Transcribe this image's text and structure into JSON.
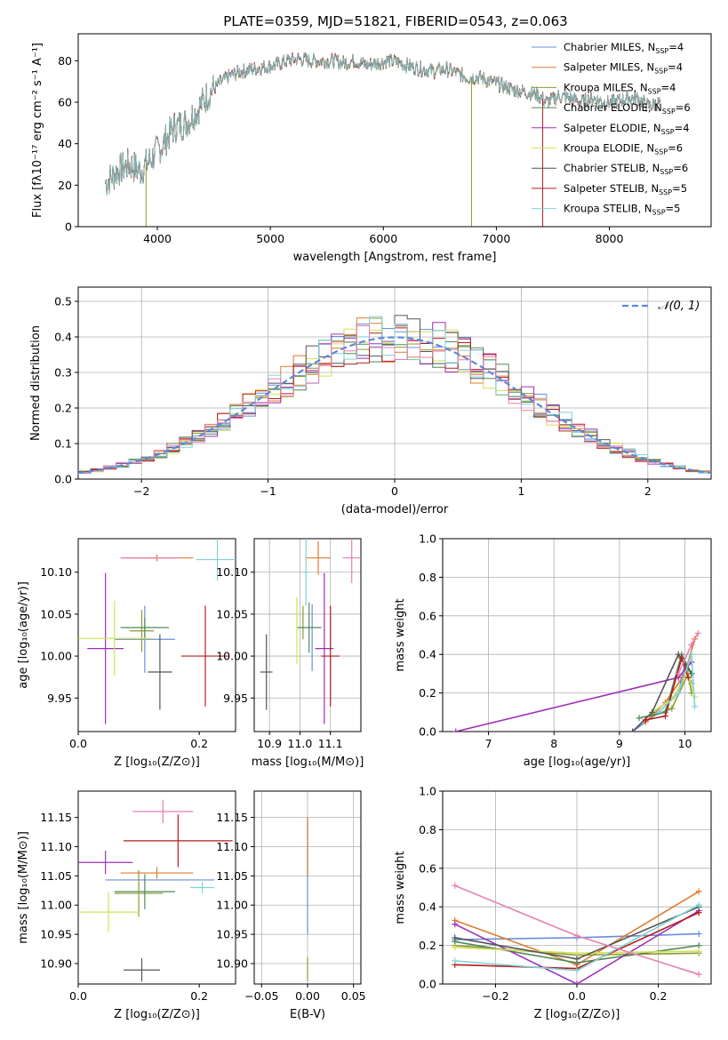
{
  "title": "PLATE=0359, MJD=51821, FIBERID=0543, z=0.063",
  "colors": [
    "#6a8fd8",
    "#e07b2c",
    "#8e9a2f",
    "#4f8a5a",
    "#9b30b8",
    "#d4e05a",
    "#555555",
    "#b51c1c",
    "#7fd3d6",
    "#e87fb3"
  ],
  "chart_data": [
    {
      "id": "spectrum",
      "type": "line",
      "xlabel": "wavelength [Angstrom, rest frame]",
      "ylabel": "Flux [fλ10⁻¹⁷ erg cm⁻² s⁻¹ A⁻¹]",
      "xlim": [
        3300,
        8900
      ],
      "ylim": [
        0,
        93
      ],
      "xticks": [
        4000,
        5000,
        6000,
        7000,
        8000
      ],
      "yticks": [
        0,
        20,
        40,
        60,
        80
      ],
      "grid": false,
      "legend_position": "top-right",
      "continuum": {
        "x": [
          3540,
          3650,
          3750,
          3850,
          3950,
          4050,
          4150,
          4250,
          4350,
          4450,
          4550,
          4650,
          4750,
          4850,
          4950,
          5050,
          5150,
          5250,
          5350,
          5450,
          5550,
          5650,
          5750,
          5850,
          5950,
          6050,
          6150,
          6250,
          6350,
          6450,
          6550,
          6650,
          6750,
          6850,
          6950,
          7050,
          7150,
          7250,
          7350,
          7450,
          7550,
          7650,
          7750,
          7850,
          7950,
          8050,
          8150,
          8250,
          8350,
          8450
        ],
        "y": [
          21,
          27,
          30,
          27,
          33,
          40,
          48,
          50,
          56,
          64,
          69,
          73,
          75,
          76,
          77,
          78,
          80,
          81,
          80,
          80,
          80,
          79,
          80,
          78,
          79,
          80,
          79,
          77,
          76,
          75,
          76,
          74,
          72,
          72,
          70,
          68,
          66,
          65,
          64,
          60,
          63,
          62,
          60,
          62,
          60,
          60,
          62,
          62,
          58,
          60
        ]
      },
      "dips": [
        {
          "x": 3900,
          "y": 0
        },
        {
          "x": 6780,
          "y": 0
        },
        {
          "x": 7410,
          "y": 0
        }
      ],
      "series": [
        {
          "name": "Chabrier MILES, N",
          "sub": "SSP",
          "suffix": "=4"
        },
        {
          "name": "Salpeter MILES, N",
          "sub": "SSP",
          "suffix": "=4"
        },
        {
          "name": "Kroupa MILES, N",
          "sub": "SSP",
          "suffix": "=4"
        },
        {
          "name": "Chabrier ELODIE, N",
          "sub": "SSP",
          "suffix": "=6"
        },
        {
          "name": "Salpeter ELODIE, N",
          "sub": "SSP",
          "suffix": "=4"
        },
        {
          "name": "Kroupa ELODIE, N",
          "sub": "SSP",
          "suffix": "=6"
        },
        {
          "name": "Chabrier STELIB, N",
          "sub": "SSP",
          "suffix": "=6"
        },
        {
          "name": "Salpeter STELIB, N",
          "sub": "SSP",
          "suffix": "=5"
        },
        {
          "name": "Kroupa STELIB, N",
          "sub": "SSP",
          "suffix": "=5"
        }
      ]
    },
    {
      "id": "residuals",
      "type": "line",
      "xlabel": "(data-model)/error",
      "ylabel": "Normed distribution",
      "xlim": [
        -2.5,
        2.5
      ],
      "ylim": [
        0,
        0.54
      ],
      "xticks": [
        -2,
        -1,
        0,
        1,
        2
      ],
      "yticks": [
        0.0,
        0.1,
        0.2,
        0.3,
        0.4,
        0.5
      ],
      "grid": true,
      "legend_position": "top-right",
      "legend_label": "𝒩(0, 1)",
      "gaussian": {
        "mu": 0,
        "sigma": 1
      }
    },
    {
      "id": "age-vs-Z",
      "type": "scatter",
      "xlabel": "Z [log₁₀(Z/Z⊙)]",
      "ylabel": "age  [log₁₀(age/yr)]",
      "xlim": [
        0,
        0.26
      ],
      "ylim": [
        9.91,
        10.14
      ],
      "xticks": [
        0.0,
        0.2
      ],
      "yticks": [
        9.95,
        10.0,
        10.05,
        10.1
      ],
      "grid": false,
      "points": [
        {
          "x": 0.11,
          "y": 10.02,
          "xerr": 0.05,
          "yerr": 0.04
        },
        {
          "x": 0.13,
          "y": 10.117,
          "xerr": 0.06,
          "yerr": 0.004
        },
        {
          "x": 0.105,
          "y": 10.03,
          "xerr": 0.02,
          "yerr": 0.025
        },
        {
          "x": 0.11,
          "y": 10.034,
          "xerr": 0.04,
          "yerr": 0.012
        },
        {
          "x": 0.045,
          "y": 10.009,
          "xerr": 0.03,
          "yerr": 0.09
        },
        {
          "x": 0.06,
          "y": 10.021,
          "xerr": 0.06,
          "yerr": 0.045
        },
        {
          "x": 0.135,
          "y": 9.981,
          "xerr": 0.02,
          "yerr": 0.045
        },
        {
          "x": 0.21,
          "y": 10.0,
          "xerr": 0.04,
          "yerr": 0.06
        },
        {
          "x": 0.23,
          "y": 10.115,
          "xerr": 0.035,
          "yerr": 0.025
        },
        {
          "x": 0.12,
          "y": 10.117,
          "xerr": 0.05,
          "yerr": 0.0
        }
      ]
    },
    {
      "id": "age-vs-mass",
      "type": "scatter",
      "xlabel": "mass [log₁₀(M/M⊙)]",
      "ylabel": "",
      "xlim": [
        10.85,
        11.2
      ],
      "ylim": [
        9.91,
        10.14
      ],
      "xticks": [
        10.9,
        11.0,
        11.1
      ],
      "yticks": [
        9.95,
        10.0,
        10.05,
        10.1
      ],
      "grid": true,
      "points": [
        {
          "x": 11.04,
          "y": 10.022,
          "xerr": 0.0,
          "yerr": 0.04
        },
        {
          "x": 11.06,
          "y": 10.117,
          "xerr": 0.04,
          "yerr": 0.02
        },
        {
          "x": 11.01,
          "y": 10.04,
          "xerr": 0.0,
          "yerr": 0.02
        },
        {
          "x": 11.03,
          "y": 10.034,
          "xerr": 0.04,
          "yerr": 0.03
        },
        {
          "x": 11.08,
          "y": 10.009,
          "xerr": 0.03,
          "yerr": 0.09
        },
        {
          "x": 10.99,
          "y": 10.03,
          "xerr": 0.0,
          "yerr": 0.04
        },
        {
          "x": 10.89,
          "y": 9.981,
          "xerr": 0.02,
          "yerr": 0.045
        },
        {
          "x": 11.1,
          "y": 10.0,
          "xerr": 0.03,
          "yerr": 0.06
        },
        {
          "x": 11.02,
          "y": 10.1,
          "xerr": 0.01,
          "yerr": 0.04
        },
        {
          "x": 11.17,
          "y": 10.117,
          "xerr": 0.03,
          "yerr": 0.03
        }
      ]
    },
    {
      "id": "weight-vs-age",
      "type": "line",
      "xlabel": "age  [log₁₀(age/yr)]",
      "ylabel": "mass weight",
      "xlim": [
        6.3,
        10.4
      ],
      "ylim": [
        0,
        1.0
      ],
      "xticks": [
        7,
        8,
        9,
        10
      ],
      "yticks": [
        0.0,
        0.2,
        0.4,
        0.6,
        0.8,
        1.0
      ],
      "grid": true,
      "series": [
        {
          "x": [
            9.2,
            9.6,
            9.9,
            10.0,
            10.1
          ],
          "y": [
            0.0,
            0.1,
            0.2,
            0.35,
            0.25
          ]
        },
        {
          "x": [
            9.4,
            9.7,
            10.0,
            10.15
          ],
          "y": [
            0.05,
            0.15,
            0.3,
            0.48
          ]
        },
        {
          "x": [
            9.5,
            9.8,
            10.05,
            10.1
          ],
          "y": [
            0.08,
            0.12,
            0.3,
            0.2
          ]
        },
        {
          "x": [
            9.3,
            9.7,
            9.95,
            10.1
          ],
          "y": [
            0.07,
            0.1,
            0.4,
            0.3
          ]
        },
        {
          "x": [
            6.5,
            9.9,
            10.1
          ],
          "y": [
            0.0,
            0.28,
            0.36
          ]
        },
        {
          "x": [
            9.5,
            9.8,
            10.05,
            10.15
          ],
          "y": [
            0.1,
            0.17,
            0.3,
            0.18
          ]
        },
        {
          "x": [
            9.2,
            9.5,
            9.9,
            10.1
          ],
          "y": [
            0.0,
            0.1,
            0.4,
            0.3
          ]
        },
        {
          "x": [
            9.4,
            9.7,
            9.95,
            10.05
          ],
          "y": [
            0.06,
            0.08,
            0.38,
            0.28
          ]
        },
        {
          "x": [
            9.6,
            9.9,
            10.1,
            10.15
          ],
          "y": [
            0.1,
            0.2,
            0.4,
            0.13
          ]
        },
        {
          "x": [
            9.9,
            10.1,
            10.2
          ],
          "y": [
            0.3,
            0.45,
            0.51
          ]
        }
      ]
    },
    {
      "id": "mass-vs-Z",
      "type": "scatter",
      "xlabel": "Z [log₁₀(Z/Z⊙)]",
      "ylabel": "mass [log₁₀(M/M⊙)]",
      "xlim": [
        0,
        0.26
      ],
      "ylim": [
        10.865,
        11.195
      ],
      "xticks": [
        0.0,
        0.2
      ],
      "yticks": [
        10.9,
        10.95,
        11.0,
        11.05,
        11.1,
        11.15
      ],
      "grid": false,
      "points": [
        {
          "x": 0.135,
          "y": 11.043,
          "xerr": 0.09,
          "yerr": 0.0
        },
        {
          "x": 0.13,
          "y": 11.055,
          "xerr": 0.06,
          "yerr": 0.01
        },
        {
          "x": 0.1,
          "y": 11.02,
          "xerr": 0.04,
          "yerr": 0.04
        },
        {
          "x": 0.11,
          "y": 11.023,
          "xerr": 0.05,
          "yerr": 0.03
        },
        {
          "x": 0.045,
          "y": 11.073,
          "xerr": 0.045,
          "yerr": 0.02
        },
        {
          "x": 0.05,
          "y": 10.988,
          "xerr": 0.05,
          "yerr": 0.035
        },
        {
          "x": 0.105,
          "y": 10.889,
          "xerr": 0.03,
          "yerr": 0.02
        },
        {
          "x": 0.165,
          "y": 11.11,
          "xerr": 0.09,
          "yerr": 0.045
        },
        {
          "x": 0.205,
          "y": 11.03,
          "xerr": 0.02,
          "yerr": 0.01
        },
        {
          "x": 0.14,
          "y": 11.16,
          "xerr": 0.05,
          "yerr": 0.02
        }
      ]
    },
    {
      "id": "mass-vs-ebv",
      "type": "scatter",
      "xlabel": "E(B-V)",
      "ylabel": "",
      "xlim": [
        -0.058,
        0.058
      ],
      "ylim": [
        10.865,
        11.195
      ],
      "xticks": [
        -0.05,
        0.0,
        0.05
      ],
      "yticks": [
        10.9,
        10.95,
        11.0,
        11.05,
        11.1,
        11.15
      ],
      "grid": true,
      "points": [
        {
          "x": 0.0,
          "y": 11.05,
          "xerr": 0.0,
          "yerr": 0.1
        },
        {
          "x": 0.0,
          "y": 11.1,
          "xerr": 0.0,
          "yerr": 0.05
        },
        {
          "x": 0.0,
          "y": 10.89,
          "xerr": 0.0,
          "yerr": 0.02
        }
      ]
    },
    {
      "id": "weight-vs-Z",
      "type": "line",
      "xlabel": "Z [log₁₀(Z/Z⊙)]",
      "ylabel": "mass weight",
      "xlim": [
        -0.33,
        0.33
      ],
      "ylim": [
        0,
        1.0
      ],
      "xticks": [
        -0.2,
        0.0,
        0.2
      ],
      "yticks": [
        0.0,
        0.2,
        0.4,
        0.6,
        0.8,
        1.0
      ],
      "grid": true,
      "series": [
        {
          "x": [
            -0.3,
            0.0,
            0.3
          ],
          "y": [
            0.23,
            0.24,
            0.26
          ]
        },
        {
          "x": [
            -0.3,
            0.0,
            0.3
          ],
          "y": [
            0.33,
            0.1,
            0.48
          ]
        },
        {
          "x": [
            -0.3,
            0.0,
            0.3
          ],
          "y": [
            0.2,
            0.15,
            0.16
          ]
        },
        {
          "x": [
            -0.3,
            0.0,
            0.3
          ],
          "y": [
            0.22,
            0.11,
            0.2
          ]
        },
        {
          "x": [
            -0.3,
            0.0,
            0.3
          ],
          "y": [
            0.31,
            0.0,
            0.38
          ]
        },
        {
          "x": [
            -0.3,
            0.0,
            0.3
          ],
          "y": [
            0.19,
            0.16,
            0.17
          ]
        },
        {
          "x": [
            -0.3,
            0.0,
            0.3
          ],
          "y": [
            0.24,
            0.13,
            0.4
          ]
        },
        {
          "x": [
            -0.3,
            0.0,
            0.3
          ],
          "y": [
            0.1,
            0.08,
            0.37
          ]
        },
        {
          "x": [
            -0.3,
            0.0,
            0.3
          ],
          "y": [
            0.12,
            0.07,
            0.41
          ]
        },
        {
          "x": [
            -0.3,
            0.0,
            0.3
          ],
          "y": [
            0.51,
            0.25,
            0.05
          ]
        }
      ]
    }
  ]
}
